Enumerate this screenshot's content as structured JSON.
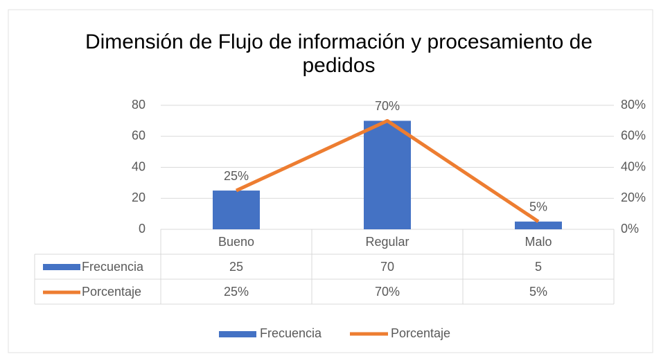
{
  "chart_data": {
    "type": "bar_line",
    "title": "Dimensión de Flujo de información y procesamiento de pedidos",
    "categories": [
      "Bueno",
      "Regular",
      "Malo"
    ],
    "series": [
      {
        "name": "Frecuencia",
        "type": "bar",
        "color": "#4472c4",
        "values": [
          25,
          70,
          5
        ]
      },
      {
        "name": "Porcentaje",
        "type": "line",
        "axis": "y2",
        "color": "#ed7d31",
        "values": [
          25,
          70,
          5
        ],
        "value_labels": [
          "25%",
          "70%",
          "5%"
        ]
      }
    ],
    "ylim": [
      0,
      80
    ],
    "yticks": [
      0,
      20,
      40,
      60,
      80
    ],
    "y2lim": [
      0,
      80
    ],
    "y2ticks": [
      {
        "value": 0,
        "label": "0%"
      },
      {
        "value": 20,
        "label": "20%"
      },
      {
        "value": 40,
        "label": "40%"
      },
      {
        "value": 60,
        "label": "60%"
      },
      {
        "value": 80,
        "label": "80%"
      }
    ],
    "grid": true,
    "legend": "bottom",
    "data_table": true
  }
}
